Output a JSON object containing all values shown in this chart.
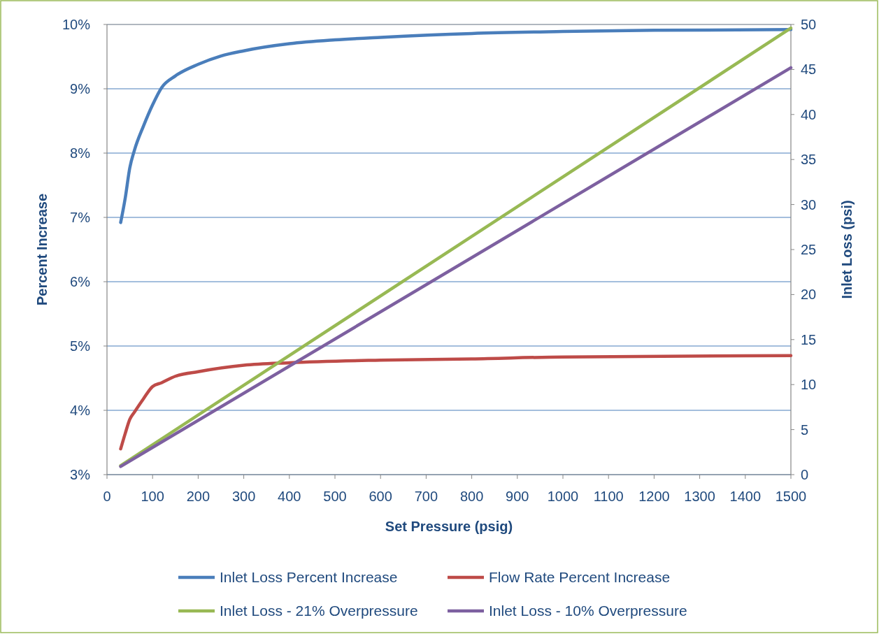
{
  "chart_data": {
    "type": "line",
    "xlabel": "Set Pressure (psig)",
    "ylabel": "Percent Increase",
    "y2label": "Inlet Loss (psi)",
    "xlim": [
      0,
      1500
    ],
    "xticks": [
      0,
      100,
      200,
      300,
      400,
      500,
      600,
      700,
      800,
      900,
      1000,
      1100,
      1200,
      1300,
      1400,
      1500
    ],
    "ylim": [
      3,
      10
    ],
    "yticks": [
      {
        "value": 3,
        "label": "3%"
      },
      {
        "value": 4,
        "label": "4%"
      },
      {
        "value": 5,
        "label": "5%"
      },
      {
        "value": 6,
        "label": "6%"
      },
      {
        "value": 7,
        "label": "7%"
      },
      {
        "value": 8,
        "label": "8%"
      },
      {
        "value": 9,
        "label": "9%"
      },
      {
        "value": 10,
        "label": "10%"
      }
    ],
    "y2lim": [
      0,
      50
    ],
    "y2ticks": [
      0,
      5,
      10,
      15,
      20,
      25,
      30,
      35,
      40,
      45,
      50
    ],
    "grid": "y",
    "legend": "bottom",
    "line_style": "solid",
    "series": [
      {
        "name": "Inlet Loss Percent Increase",
        "color": "#4a7ebb",
        "x": [
          30,
          40,
          50,
          60,
          80,
          100,
          120,
          150,
          200,
          250,
          300,
          400,
          500,
          600,
          800,
          1000,
          1200,
          1500
        ],
        "values": [
          6.92,
          7.3,
          7.77,
          8.04,
          8.42,
          8.75,
          9.02,
          9.2,
          9.38,
          9.51,
          9.59,
          9.7,
          9.76,
          9.8,
          9.86,
          9.89,
          9.91,
          9.92
        ]
      },
      {
        "name": "Flow Rate Percent Increase",
        "color": "#be4b48",
        "x": [
          30,
          40,
          50,
          60,
          80,
          100,
          120,
          150,
          200,
          300,
          400,
          600,
          800,
          1000,
          1500
        ],
        "values": [
          3.4,
          3.64,
          3.86,
          3.97,
          4.18,
          4.37,
          4.43,
          4.53,
          4.6,
          4.7,
          4.74,
          4.78,
          4.8,
          4.83,
          4.85
        ]
      },
      {
        "name": "Inlet Loss - 21% Overpressure",
        "color": "#98b954",
        "axis": "y2",
        "x": [
          30,
          1500
        ],
        "values": [
          1.0,
          49.6
        ]
      },
      {
        "name": "Inlet Loss - 10% Overpressure",
        "color": "#7d60a0",
        "axis": "y2",
        "x": [
          30,
          1500
        ],
        "values": [
          0.9,
          45.2
        ]
      }
    ]
  }
}
